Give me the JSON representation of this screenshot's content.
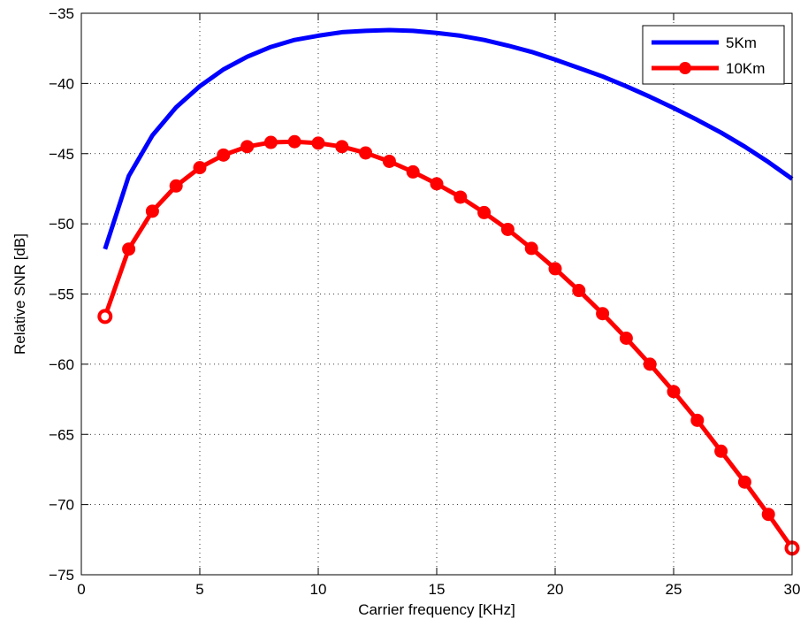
{
  "chart_data": {
    "type": "line",
    "xlabel": "Carrier frequency [KHz]",
    "ylabel": "Relative SNR [dB]",
    "xlim": [
      0,
      30
    ],
    "ylim": [
      -75,
      -35
    ],
    "xticks": [
      0,
      5,
      10,
      15,
      20,
      25,
      30
    ],
    "yticks": [
      -75,
      -70,
      -65,
      -60,
      -55,
      -50,
      -45,
      -40,
      -35
    ],
    "xtick_labels": [
      "0",
      "5",
      "10",
      "15",
      "20",
      "25",
      "30"
    ],
    "ytick_labels": [
      "−75",
      "−70",
      "−65",
      "−60",
      "−55",
      "−50",
      "−45",
      "−40",
      "−35"
    ],
    "grid": true,
    "legend_position": "top-right",
    "series": [
      {
        "name": "5Km",
        "color": "#0000ff",
        "marker": "none",
        "x": [
          1,
          2,
          3,
          4,
          5,
          6,
          7,
          8,
          9,
          10,
          11,
          12,
          13,
          14,
          15,
          16,
          17,
          18,
          19,
          20,
          21,
          22,
          23,
          24,
          25,
          26,
          27,
          28,
          29,
          30
        ],
        "y": [
          -51.8,
          -46.6,
          -43.7,
          -41.7,
          -40.2,
          -39.0,
          -38.1,
          -37.4,
          -36.9,
          -36.6,
          -36.35,
          -36.25,
          -36.2,
          -36.25,
          -36.4,
          -36.6,
          -36.9,
          -37.3,
          -37.75,
          -38.3,
          -38.9,
          -39.5,
          -40.2,
          -40.95,
          -41.75,
          -42.6,
          -43.5,
          -44.5,
          -45.6,
          -46.8
        ]
      },
      {
        "name": "10Km",
        "color": "#ff0000",
        "marker": "circle",
        "x": [
          1,
          2,
          3,
          4,
          5,
          6,
          7,
          8,
          9,
          10,
          11,
          12,
          13,
          14,
          15,
          16,
          17,
          18,
          19,
          20,
          21,
          22,
          23,
          24,
          25,
          26,
          27,
          28,
          29,
          30
        ],
        "y": [
          -56.6,
          -51.8,
          -49.1,
          -47.3,
          -46.0,
          -45.1,
          -44.5,
          -44.2,
          -44.15,
          -44.25,
          -44.5,
          -44.95,
          -45.55,
          -46.3,
          -47.15,
          -48.1,
          -49.2,
          -50.4,
          -51.75,
          -53.2,
          -54.75,
          -56.4,
          -58.15,
          -60.0,
          -61.95,
          -64.0,
          -66.2,
          -68.4,
          -70.7,
          -73.1
        ]
      }
    ]
  }
}
